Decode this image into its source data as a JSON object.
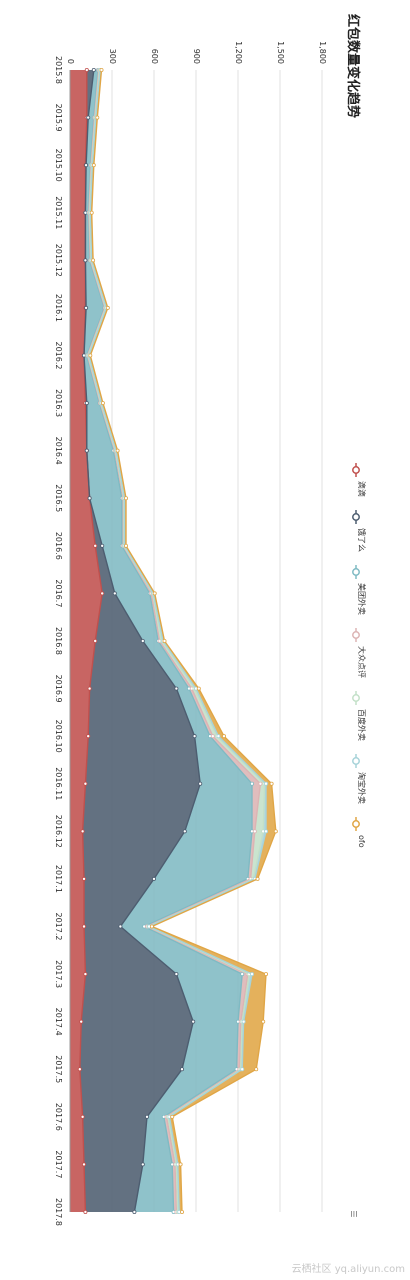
{
  "chart_data": {
    "type": "area",
    "stacked": true,
    "orientation": "rotated-90",
    "title": "红包数量变化趋势",
    "categories": [
      "2015.8",
      "2015.9",
      "2015.10",
      "2015.11",
      "2015.12",
      "2016.1",
      "2016.2",
      "2016.3",
      "2016.4",
      "2016.5",
      "2016.6",
      "2016.7",
      "2016.8",
      "2016.9",
      "2016.10",
      "2016.11",
      "2016.12",
      "2017.1",
      "2017.2",
      "2017.3",
      "2017.4",
      "2017.5",
      "2017.6",
      "2017.7",
      "2017.8"
    ],
    "ylim": [
      0,
      1800
    ],
    "yticks": [
      "0",
      "300",
      "600",
      "900",
      "1,200",
      "1,500",
      "1,800"
    ],
    "grid": true,
    "legend_position": "right",
    "series": [
      {
        "name": "滴滴",
        "color": "#c0504d",
        "values": [
          120,
          120,
          110,
          110,
          110,
          110,
          100,
          110,
          120,
          140,
          180,
          230,
          180,
          140,
          130,
          110,
          90,
          100,
          100,
          110,
          80,
          70,
          90,
          100,
          110
        ]
      },
      {
        "name": "饿了么",
        "color": "#4d5d70",
        "values": [
          50,
          10,
          5,
          0,
          0,
          5,
          0,
          10,
          0,
          0,
          50,
          90,
          340,
          620,
          760,
          820,
          730,
          500,
          260,
          650,
          800,
          730,
          460,
          420,
          350
        ]
      },
      {
        "name": "美团外卖",
        "color": "#7fbac3",
        "values": [
          30,
          40,
          30,
          20,
          30,
          130,
          20,
          90,
          190,
          230,
          140,
          250,
          110,
          90,
          110,
          370,
          480,
          670,
          170,
          470,
          320,
          390,
          120,
          210,
          280
        ]
      },
      {
        "name": "大众点评",
        "color": "#dcb4b4",
        "values": [
          5,
          5,
          5,
          5,
          5,
          5,
          5,
          5,
          10,
          10,
          10,
          10,
          10,
          20,
          20,
          60,
          20,
          20,
          20,
          40,
          20,
          20,
          20,
          20,
          20
        ]
      },
      {
        "name": "百度外卖",
        "color": "#c3e0c8",
        "values": [
          5,
          5,
          5,
          5,
          5,
          5,
          5,
          5,
          5,
          5,
          5,
          10,
          15,
          20,
          30,
          30,
          60,
          20,
          10,
          10,
          10,
          10,
          10,
          10,
          10
        ]
      },
      {
        "name": "淘宝外卖",
        "color": "#a7d3d9",
        "values": [
          5,
          5,
          5,
          5,
          5,
          5,
          5,
          5,
          5,
          5,
          5,
          5,
          10,
          10,
          10,
          10,
          20,
          10,
          5,
          20,
          10,
          10,
          10,
          10,
          10
        ]
      },
      {
        "name": "ofo",
        "color": "#e0a646",
        "values": [
          10,
          10,
          10,
          10,
          10,
          10,
          10,
          10,
          10,
          10,
          10,
          10,
          10,
          20,
          40,
          40,
          70,
          20,
          20,
          100,
          140,
          100,
          20,
          20,
          20
        ]
      }
    ]
  },
  "watermark": "云栖社区 yq.aliyun.com"
}
